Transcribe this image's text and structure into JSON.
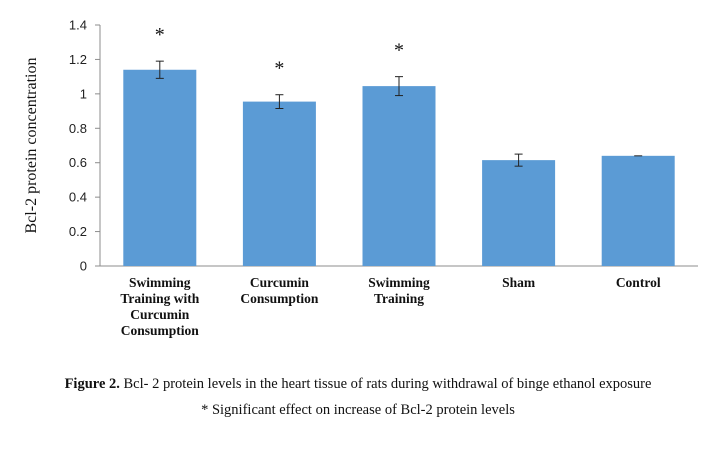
{
  "chart_data": {
    "type": "bar",
    "categories": [
      [
        "Swimming",
        "Training with",
        "Curcumin",
        "Consumption"
      ],
      [
        "Curcumin",
        "Consumption"
      ],
      [
        "Swimming",
        "Training"
      ],
      [
        "Sham"
      ],
      [
        "Control"
      ]
    ],
    "values": [
      1.14,
      0.955,
      1.045,
      0.615,
      0.64
    ],
    "error": [
      0.05,
      0.04,
      0.055,
      0.035,
      0.0
    ],
    "significance": [
      "*",
      "*",
      "*",
      "",
      ""
    ],
    "ylabel": "Bcl-2 protein concentration",
    "xlabel": "",
    "ylim": [
      0,
      1.4
    ],
    "yticks": [
      0,
      0.2,
      0.4,
      0.6,
      0.8,
      1,
      1.2,
      1.4
    ],
    "ytick_labels": [
      "0",
      "0.2",
      "0.4",
      "0.6",
      "0.8",
      "1",
      "1.2",
      "1.4"
    ],
    "bar_color": "#5b9bd5",
    "grid": false,
    "legend": "none"
  },
  "caption": {
    "label": "Figure 2.",
    "text": " Bcl- 2 protein levels in the heart tissue of rats during withdrawal of binge ethanol exposure",
    "note": "* Significant effect on increase of Bcl-2 protein levels"
  }
}
